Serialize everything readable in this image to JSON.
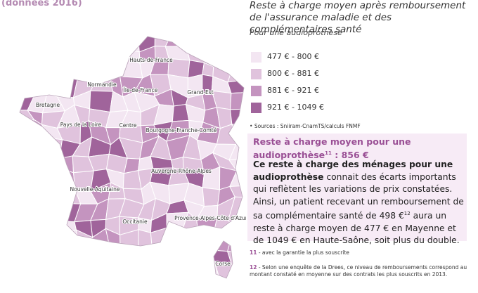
{
  "header": {
    "note": "(données 2016)",
    "title": "Reste à charge moyen après remboursement de l'assurance maladie et des complémentaires santé",
    "subtitle": "Pour une audioprothèse"
  },
  "legend": {
    "items": [
      {
        "label": "477 € - 800 €",
        "color": "#f3e6f2"
      },
      {
        "label": "800 € - 881 €",
        "color": "#e0c3dd"
      },
      {
        "label": "881 € - 921 €",
        "color": "#c494bf"
      },
      {
        "label": "921 € - 1049 €",
        "color": "#a0649b"
      }
    ]
  },
  "source": "Sources : Sniiram-CnamTS/calculs FNMF",
  "box": {
    "heading": "Reste à charge moyen pour une audioprothèse",
    "heading_note": "11",
    "heading_value": " : 856 €",
    "body_bold": "Ce reste à charge des ménages pour une audioprothèse",
    "body_1": " connait des écarts importants qui reflètent les variations de prix constatées. Ainsi, un patient recevant un remboursement de sa complémentaire santé de 498 €",
    "body_note": "12",
    "body_2": " aura un reste à charge moyen de 477 € en Mayenne et de 1049 € en Haute-Saône, soit plus du double."
  },
  "footnotes": [
    {
      "number": "11",
      "text": "avec la garantie la plus souscrite"
    },
    {
      "number": "12",
      "text": "Selon une enquête de la Drees, ce niveau de remboursements correspond au montant constaté en moyenne sur des contrats les plus souscrits en 2013."
    }
  ],
  "map": {
    "regions": [
      "Hauts-de-France",
      "Normandie",
      "Île-de-France",
      "Grand-Est",
      "Bretagne",
      "Pays de la Loire",
      "Centre",
      "Bourgogne-Franche-Comté",
      "Nouvelle-Aquitaine",
      "Auvergne-Rhône-Alpes",
      "Occitanie",
      "Provence-Alpes-Côte d'Azur",
      "Corse"
    ]
  }
}
